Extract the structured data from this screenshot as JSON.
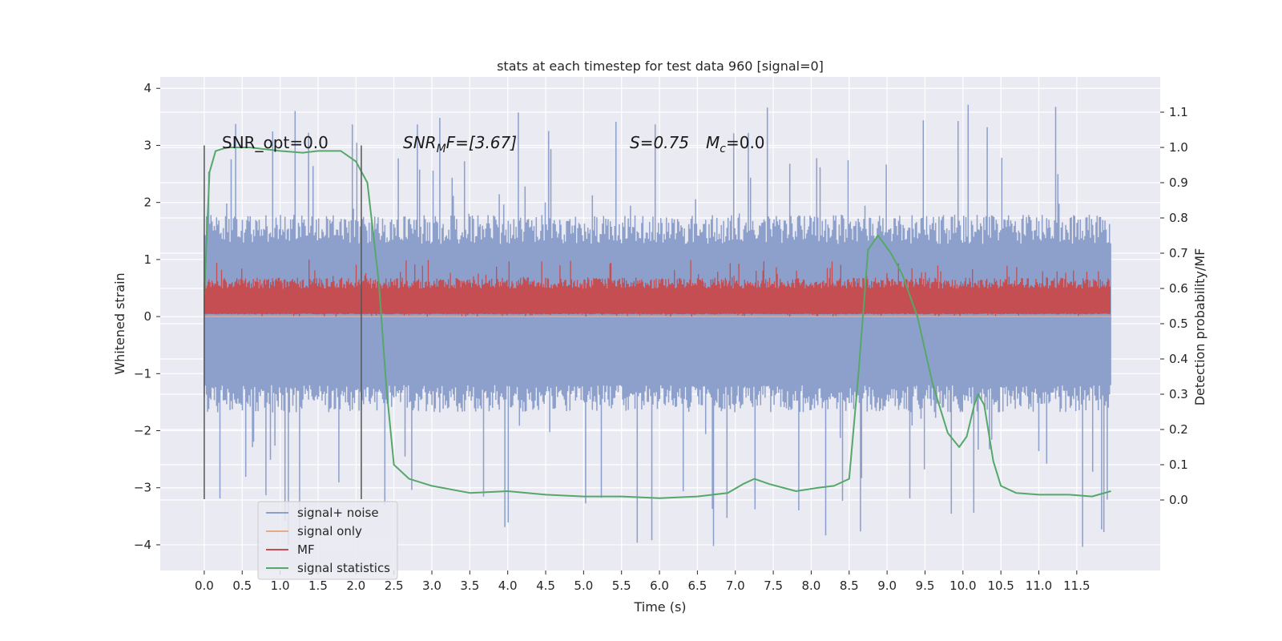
{
  "chart_data": {
    "type": "line",
    "title": "stats at each timestep for test data 960 [signal=0]",
    "xlabel": "Time (s)",
    "ylabel_left": "Whitened strain",
    "ylabel_right": "Detection probability/MF",
    "xlim": [
      -0.58,
      12.6
    ],
    "ylim_left": [
      -4.45,
      4.2
    ],
    "ylim_right": [
      -0.2,
      1.2
    ],
    "x_ticks": [
      0.0,
      0.5,
      1.0,
      1.5,
      2.0,
      2.5,
      3.0,
      3.5,
      4.0,
      4.5,
      5.0,
      5.5,
      6.0,
      6.5,
      7.0,
      7.5,
      8.0,
      8.5,
      9.0,
      9.5,
      10.0,
      10.5,
      11.0,
      11.5
    ],
    "x_tick_labels": [
      "0.0",
      "0.5",
      "1.0",
      "1.5",
      "2.0",
      "2.5",
      "3.0",
      "3.5",
      "4.0",
      "4.5",
      "5.0",
      "5.5",
      "6.0",
      "6.5",
      "7.0",
      "7.5",
      "8.0",
      "8.5",
      "9.0",
      "9.5",
      "10.0",
      "10.5",
      "11.0",
      "11.5"
    ],
    "y_left_ticks": [
      -4,
      -3,
      -2,
      -1,
      0,
      1,
      2,
      3,
      4
    ],
    "y_left_tick_labels": [
      "−4",
      "−3",
      "−2",
      "−1",
      "0",
      "1",
      "2",
      "3",
      "4"
    ],
    "y_right_ticks": [
      0.0,
      0.1,
      0.2,
      0.3,
      0.4,
      0.5,
      0.6,
      0.7,
      0.8,
      0.9,
      1.0,
      1.1
    ],
    "y_right_tick_labels": [
      "0.0",
      "0.1",
      "0.2",
      "0.3",
      "0.4",
      "0.5",
      "0.6",
      "0.7",
      "0.8",
      "0.9",
      "1.0",
      "1.1"
    ],
    "grid": true,
    "legend_position": "bottom-left",
    "vertical_lines": {
      "x": [
        0.0,
        2.07
      ],
      "y_range": [
        -3.2,
        3.0
      ],
      "color": "#555555"
    },
    "annotations": {
      "snr_opt": "SNR_opt=0.0",
      "snr_mf_base": "SNR",
      "snr_mf_sub": "M",
      "snr_mf_rest": "F=[3.67]",
      "s_value": "S=0.75",
      "mc_base": "M",
      "mc_sub": "c",
      "mc_rest": "=0.0"
    },
    "series": [
      {
        "name": "signal+ noise",
        "axis": "left",
        "color": "#8da0cb",
        "kind": "noise-band",
        "x_range": [
          0.0,
          11.95
        ],
        "typical_range": [
          -1.6,
          1.7
        ],
        "peak_range": [
          -4.1,
          3.85
        ]
      },
      {
        "name": "signal only",
        "axis": "left",
        "color": "#e8a88a",
        "kind": "line",
        "x": [
          0.0,
          11.95
        ],
        "y": [
          0.0,
          0.0
        ]
      },
      {
        "name": "MF",
        "axis": "left",
        "color": "#c44e52",
        "kind": "noise-band",
        "x_range": [
          0.0,
          11.95
        ],
        "typical_range": [
          0.05,
          0.65
        ],
        "peak_range": [
          0.0,
          1.0
        ]
      },
      {
        "name": "signal statistics",
        "axis": "right",
        "color": "#55a868",
        "kind": "line",
        "x": [
          0.0,
          0.07,
          0.15,
          0.3,
          0.6,
          1.0,
          1.3,
          1.5,
          1.8,
          2.0,
          2.15,
          2.3,
          2.4,
          2.5,
          2.7,
          3.0,
          3.5,
          4.0,
          4.5,
          5.0,
          5.5,
          6.0,
          6.5,
          6.9,
          7.1,
          7.25,
          7.45,
          7.8,
          8.1,
          8.3,
          8.5,
          8.62,
          8.75,
          8.88,
          8.95,
          9.05,
          9.2,
          9.4,
          9.6,
          9.8,
          9.95,
          10.05,
          10.15,
          10.2,
          10.28,
          10.4,
          10.5,
          10.7,
          11.0,
          11.4,
          11.7,
          11.95
        ],
        "y": [
          0.58,
          0.93,
          0.99,
          1.0,
          1.0,
          0.99,
          0.985,
          0.99,
          0.99,
          0.96,
          0.9,
          0.62,
          0.32,
          0.1,
          0.06,
          0.04,
          0.02,
          0.025,
          0.015,
          0.01,
          0.01,
          0.005,
          0.01,
          0.02,
          0.045,
          0.06,
          0.045,
          0.025,
          0.035,
          0.04,
          0.06,
          0.35,
          0.71,
          0.75,
          0.73,
          0.7,
          0.64,
          0.52,
          0.33,
          0.19,
          0.15,
          0.18,
          0.27,
          0.3,
          0.27,
          0.11,
          0.04,
          0.02,
          0.015,
          0.015,
          0.01,
          0.025
        ]
      }
    ]
  }
}
